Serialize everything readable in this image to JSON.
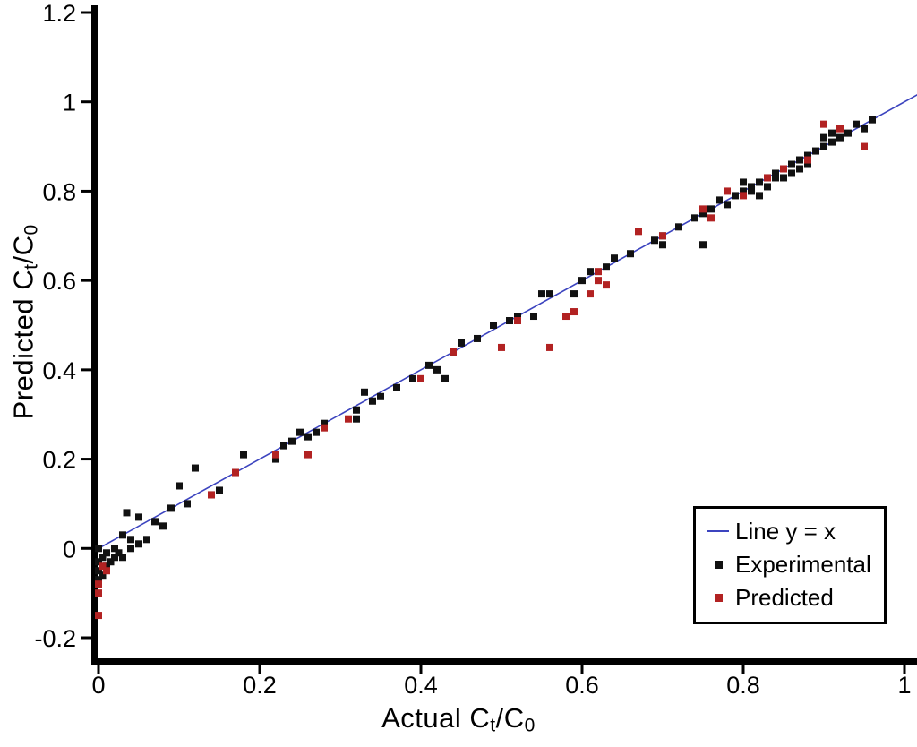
{
  "figure": {
    "xaxis_title": {
      "prefix": "Actual C",
      "sub1": "t",
      "mid": "/C",
      "sub2": "0"
    },
    "yaxis_title": {
      "prefix": "Predicted C",
      "sub1": "t",
      "mid": "/C",
      "sub2": "0"
    }
  },
  "chart_data": {
    "type": "scatter",
    "title": "",
    "xlabel": "Actual Ct/C0",
    "ylabel": "Predicted Ct/C0",
    "xlim": [
      0,
      1
    ],
    "ylim": [
      -0.2,
      1.2
    ],
    "grid": false,
    "legend_position": "lower right",
    "axis_color": "#000000",
    "xaxis": {
      "ticks": [
        {
          "v": 0,
          "label": "0"
        },
        {
          "v": 0.2,
          "label": "0.2"
        },
        {
          "v": 0.4,
          "label": "0.4"
        },
        {
          "v": 0.6,
          "label": "0.6"
        },
        {
          "v": 0.8,
          "label": "0.8"
        },
        {
          "v": 1,
          "label": "1"
        }
      ]
    },
    "yaxis": {
      "ticks": [
        {
          "v": -0.2,
          "label": "-0.2"
        },
        {
          "v": 0,
          "label": "0"
        },
        {
          "v": 0.2,
          "label": "0.2"
        },
        {
          "v": 0.4,
          "label": "0.4"
        },
        {
          "v": 0.6,
          "label": "0.6"
        },
        {
          "v": 0.8,
          "label": "0.8"
        },
        {
          "v": 1,
          "label": "1"
        },
        {
          "v": 1.2,
          "label": "1.2"
        }
      ]
    },
    "reference_line": {
      "label": "Line y = x",
      "color": "#3c44bf",
      "from": [
        0,
        0
      ],
      "to": [
        1.016,
        1.016
      ]
    },
    "series": [
      {
        "name": "Experimental",
        "marker": "square",
        "color": "#111111",
        "points": [
          [
            0.0,
            -0.07
          ],
          [
            0.0,
            -0.05
          ],
          [
            0.0,
            -0.03
          ],
          [
            0.0,
            0.0
          ],
          [
            0.005,
            -0.06
          ],
          [
            0.005,
            -0.02
          ],
          [
            0.01,
            -0.04
          ],
          [
            0.01,
            -0.01
          ],
          [
            0.015,
            -0.03
          ],
          [
            0.02,
            -0.02
          ],
          [
            0.02,
            0.0
          ],
          [
            0.025,
            -0.01
          ],
          [
            0.03,
            -0.02
          ],
          [
            0.03,
            0.03
          ],
          [
            0.035,
            0.08
          ],
          [
            0.04,
            0.0
          ],
          [
            0.04,
            0.02
          ],
          [
            0.05,
            0.07
          ],
          [
            0.05,
            0.01
          ],
          [
            0.06,
            0.02
          ],
          [
            0.07,
            0.06
          ],
          [
            0.08,
            0.05
          ],
          [
            0.09,
            0.09
          ],
          [
            0.1,
            0.14
          ],
          [
            0.11,
            0.1
          ],
          [
            0.12,
            0.18
          ],
          [
            0.14,
            0.12
          ],
          [
            0.15,
            0.13
          ],
          [
            0.17,
            0.17
          ],
          [
            0.18,
            0.21
          ],
          [
            0.22,
            0.2
          ],
          [
            0.23,
            0.23
          ],
          [
            0.24,
            0.24
          ],
          [
            0.25,
            0.26
          ],
          [
            0.26,
            0.25
          ],
          [
            0.27,
            0.26
          ],
          [
            0.28,
            0.28
          ],
          [
            0.32,
            0.29
          ],
          [
            0.32,
            0.31
          ],
          [
            0.33,
            0.35
          ],
          [
            0.34,
            0.33
          ],
          [
            0.35,
            0.34
          ],
          [
            0.37,
            0.36
          ],
          [
            0.39,
            0.38
          ],
          [
            0.41,
            0.41
          ],
          [
            0.42,
            0.4
          ],
          [
            0.43,
            0.38
          ],
          [
            0.44,
            0.44
          ],
          [
            0.45,
            0.46
          ],
          [
            0.47,
            0.47
          ],
          [
            0.49,
            0.5
          ],
          [
            0.51,
            0.51
          ],
          [
            0.52,
            0.52
          ],
          [
            0.54,
            0.52
          ],
          [
            0.55,
            0.57
          ],
          [
            0.56,
            0.57
          ],
          [
            0.59,
            0.57
          ],
          [
            0.6,
            0.6
          ],
          [
            0.61,
            0.62
          ],
          [
            0.63,
            0.63
          ],
          [
            0.64,
            0.65
          ],
          [
            0.66,
            0.66
          ],
          [
            0.69,
            0.69
          ],
          [
            0.7,
            0.7
          ],
          [
            0.7,
            0.68
          ],
          [
            0.72,
            0.72
          ],
          [
            0.74,
            0.74
          ],
          [
            0.75,
            0.68
          ],
          [
            0.75,
            0.75
          ],
          [
            0.76,
            0.76
          ],
          [
            0.77,
            0.78
          ],
          [
            0.78,
            0.77
          ],
          [
            0.79,
            0.79
          ],
          [
            0.8,
            0.8
          ],
          [
            0.8,
            0.82
          ],
          [
            0.81,
            0.8
          ],
          [
            0.81,
            0.81
          ],
          [
            0.82,
            0.82
          ],
          [
            0.82,
            0.79
          ],
          [
            0.83,
            0.83
          ],
          [
            0.83,
            0.81
          ],
          [
            0.84,
            0.84
          ],
          [
            0.84,
            0.83
          ],
          [
            0.85,
            0.85
          ],
          [
            0.85,
            0.83
          ],
          [
            0.86,
            0.86
          ],
          [
            0.86,
            0.84
          ],
          [
            0.87,
            0.87
          ],
          [
            0.87,
            0.85
          ],
          [
            0.88,
            0.88
          ],
          [
            0.88,
            0.86
          ],
          [
            0.89,
            0.89
          ],
          [
            0.9,
            0.9
          ],
          [
            0.9,
            0.92
          ],
          [
            0.91,
            0.91
          ],
          [
            0.91,
            0.93
          ],
          [
            0.92,
            0.92
          ],
          [
            0.93,
            0.93
          ],
          [
            0.94,
            0.95
          ],
          [
            0.95,
            0.94
          ],
          [
            0.96,
            0.96
          ]
        ]
      },
      {
        "name": "Predicted",
        "marker": "square",
        "color": "#b22222",
        "points": [
          [
            0.0,
            -0.15
          ],
          [
            0.0,
            -0.1
          ],
          [
            0.0,
            -0.08
          ],
          [
            0.005,
            -0.04
          ],
          [
            0.01,
            -0.05
          ],
          [
            0.14,
            0.12
          ],
          [
            0.17,
            0.17
          ],
          [
            0.22,
            0.21
          ],
          [
            0.26,
            0.21
          ],
          [
            0.28,
            0.27
          ],
          [
            0.31,
            0.29
          ],
          [
            0.4,
            0.38
          ],
          [
            0.44,
            0.44
          ],
          [
            0.5,
            0.45
          ],
          [
            0.52,
            0.51
          ],
          [
            0.56,
            0.45
          ],
          [
            0.58,
            0.52
          ],
          [
            0.59,
            0.53
          ],
          [
            0.61,
            0.57
          ],
          [
            0.62,
            0.6
          ],
          [
            0.62,
            0.62
          ],
          [
            0.63,
            0.59
          ],
          [
            0.67,
            0.71
          ],
          [
            0.7,
            0.7
          ],
          [
            0.75,
            0.76
          ],
          [
            0.76,
            0.74
          ],
          [
            0.78,
            0.8
          ],
          [
            0.8,
            0.79
          ],
          [
            0.83,
            0.83
          ],
          [
            0.85,
            0.85
          ],
          [
            0.88,
            0.87
          ],
          [
            0.9,
            0.95
          ],
          [
            0.92,
            0.94
          ],
          [
            0.95,
            0.9
          ]
        ]
      }
    ],
    "legend": {
      "items": [
        {
          "label": "Line y = x",
          "swatch": "line",
          "color": "#3c44bf"
        },
        {
          "label": "Experimental",
          "swatch": "square",
          "color": "#111111"
        },
        {
          "label": "Predicted",
          "swatch": "square",
          "color": "#b22222"
        }
      ]
    }
  }
}
